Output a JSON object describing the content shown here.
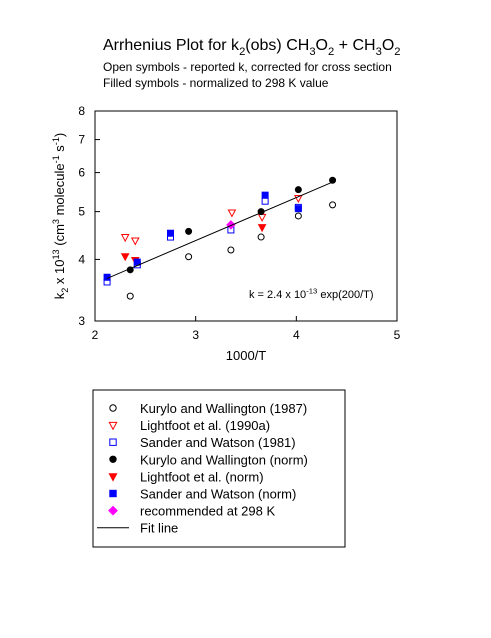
{
  "chart_data": {
    "type": "scatter",
    "title": [
      {
        "text": "Arrhenius Plot for k"
      },
      {
        "text": "2",
        "shift": "sub"
      },
      {
        "text": "(obs) CH"
      },
      {
        "text": "3",
        "shift": "sub"
      },
      {
        "text": "O"
      },
      {
        "text": "2",
        "shift": "sub"
      },
      {
        "text": " + CH"
      },
      {
        "text": "3",
        "shift": "sub"
      },
      {
        "text": "O"
      },
      {
        "text": "2",
        "shift": "sub"
      }
    ],
    "subtitles": [
      "Open symbols - reported k, corrected for cross section",
      "Filled symbols - normalized to 298 K value"
    ],
    "x_label": "1000/T",
    "y_label": [
      {
        "text": "k"
      },
      {
        "text": "2",
        "shift": "sub"
      },
      {
        "text": " x 10"
      },
      {
        "text": "13",
        "shift": "sup"
      },
      {
        "text": " (cm"
      },
      {
        "text": "3",
        "shift": "sup"
      },
      {
        "text": " molecule"
      },
      {
        "text": "-1",
        "shift": "sup"
      },
      {
        "text": " s"
      },
      {
        "text": "-1",
        "shift": "sup"
      },
      {
        "text": ")"
      }
    ],
    "annotation": [
      {
        "text": "k = 2.4 x 10"
      },
      {
        "text": "-13",
        "shift": "sup"
      },
      {
        "text": " exp(200/T)"
      }
    ],
    "xlim": [
      2,
      5
    ],
    "xticks": [
      2,
      3,
      4,
      5
    ],
    "ylim": [
      3,
      8
    ],
    "yticks": [
      3,
      4,
      5,
      6,
      7,
      8
    ],
    "y_log": true,
    "series": [
      {
        "name": "Kurylo and Wallington (1987)",
        "color": "#000000",
        "marker": "circle",
        "filled": false,
        "x": [
          2.35,
          2.93,
          3.35,
          3.65,
          4.02,
          4.36
        ],
        "values": [
          3.37,
          4.05,
          4.18,
          4.44,
          4.9,
          5.16
        ]
      },
      {
        "name": "Lightfoot et al. (1990a)",
        "color": "#ff0000",
        "marker": "triangle-down",
        "filled": false,
        "x": [
          2.3,
          2.4,
          3.36,
          3.66,
          4.02
        ],
        "values": [
          4.44,
          4.37,
          4.98,
          4.88,
          5.33
        ]
      },
      {
        "name": "Sander and Watson (1981)",
        "color": "#0000ff",
        "marker": "square",
        "filled": false,
        "x": [
          2.12,
          2.42,
          2.75,
          3.35,
          3.69,
          4.02
        ],
        "values": [
          3.6,
          3.9,
          4.44,
          4.59,
          5.25,
          5.1
        ]
      },
      {
        "name": "Kurylo and Wallington (norm)",
        "color": "#000000",
        "marker": "circle",
        "filled": true,
        "x": [
          2.35,
          2.93,
          3.65,
          4.02,
          4.36
        ],
        "values": [
          3.81,
          4.56,
          5.0,
          5.54,
          5.79
        ]
      },
      {
        "name": "Lightfoot et al. (norm)",
        "color": "#ff0000",
        "marker": "triangle-down",
        "filled": true,
        "x": [
          2.3,
          2.4,
          3.66
        ],
        "values": [
          4.06,
          3.99,
          4.65
        ]
      },
      {
        "name": "Sander and Watson (norm)",
        "color": "#0000ff",
        "marker": "square",
        "filled": true,
        "x": [
          2.12,
          2.42,
          2.75,
          3.69,
          4.02
        ],
        "values": [
          3.68,
          3.95,
          4.52,
          5.4,
          5.07
        ]
      },
      {
        "name": "recommended at 298 K",
        "color": "#ff00ff",
        "marker": "diamond",
        "filled": true,
        "x": [
          3.35
        ],
        "values": [
          4.7
        ]
      },
      {
        "name": "Fit line",
        "color": "#000000",
        "marker": "line",
        "x": [
          2.12,
          4.36
        ],
        "values": [
          3.66,
          5.74
        ]
      }
    ]
  }
}
